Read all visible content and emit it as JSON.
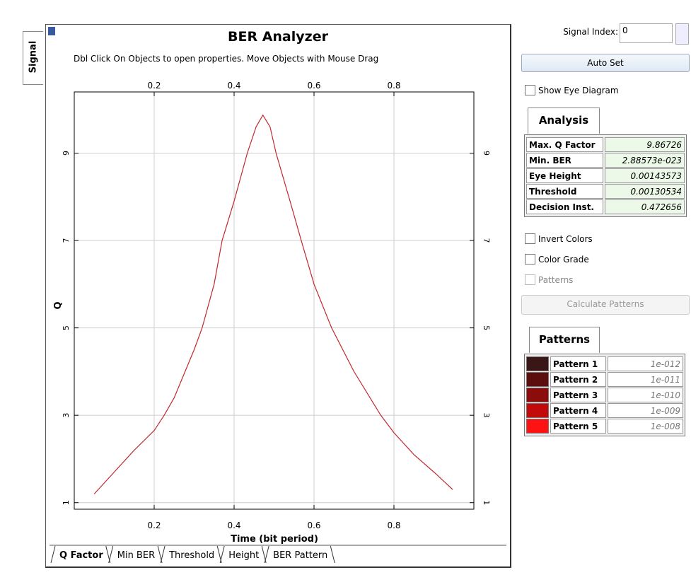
{
  "side_tab": "Signal",
  "chart_data": {
    "type": "line",
    "title": "BER Analyzer",
    "subtitle": "Dbl Click On Objects to open properties.  Move Objects with Mouse Drag",
    "x_label": "Time (bit period)",
    "y_label": "Q",
    "x": [
      0.05,
      0.1,
      0.15,
      0.2,
      0.225,
      0.25,
      0.3,
      0.32,
      0.35,
      0.37,
      0.4,
      0.433,
      0.455,
      0.472,
      0.49,
      0.505,
      0.54,
      0.568,
      0.6,
      0.644,
      0.7,
      0.767,
      0.8,
      0.85,
      0.9,
      0.947
    ],
    "values": [
      1.2,
      1.7,
      2.2,
      2.65,
      3.0,
      3.4,
      4.5,
      5.0,
      6.0,
      7.0,
      7.9,
      9.0,
      9.6,
      9.87,
      9.6,
      9.0,
      7.9,
      7.0,
      6.0,
      5.0,
      4.0,
      3.0,
      2.6,
      2.1,
      1.7,
      1.3
    ],
    "color": "#c0282d",
    "xlim": [
      0,
      1
    ],
    "ylim": [
      0.85,
      10.4
    ],
    "xticks": [
      0.2,
      0.4,
      0.6,
      0.8
    ],
    "yticks": [
      1,
      3,
      5,
      7,
      9
    ],
    "grid": true
  },
  "chart_tabs": [
    "Q Factor",
    "Min BER",
    "Threshold",
    "Height",
    "BER Pattern"
  ],
  "controls": {
    "signal_index_label": "Signal Index:",
    "signal_index_value": "0",
    "auto_set": "Auto Set",
    "show_eye_diagram": "Show Eye Diagram",
    "invert_colors": "Invert Colors",
    "color_grade": "Color Grade",
    "patterns_checkbox": "Patterns",
    "calculate_patterns": "Calculate Patterns"
  },
  "analysis": {
    "tab": "Analysis",
    "rows": [
      [
        "Max. Q Factor",
        "9.86726"
      ],
      [
        "Min. BER",
        "2.88573e-023"
      ],
      [
        "Eye Height",
        "0.00143573"
      ],
      [
        "Threshold",
        "0.00130534"
      ],
      [
        "Decision Inst.",
        "0.472656"
      ]
    ]
  },
  "patterns": {
    "tab": "Patterns",
    "rows": [
      {
        "name": "Pattern 1",
        "value": "1e-012",
        "color": "#3b1616"
      },
      {
        "name": "Pattern 2",
        "value": "1e-011",
        "color": "#5c0e0e"
      },
      {
        "name": "Pattern 3",
        "value": "1e-010",
        "color": "#8c0b0b"
      },
      {
        "name": "Pattern 4",
        "value": "1e-009",
        "color": "#c20a0a"
      },
      {
        "name": "Pattern 5",
        "value": "1e-008",
        "color": "#ff1212"
      }
    ]
  }
}
